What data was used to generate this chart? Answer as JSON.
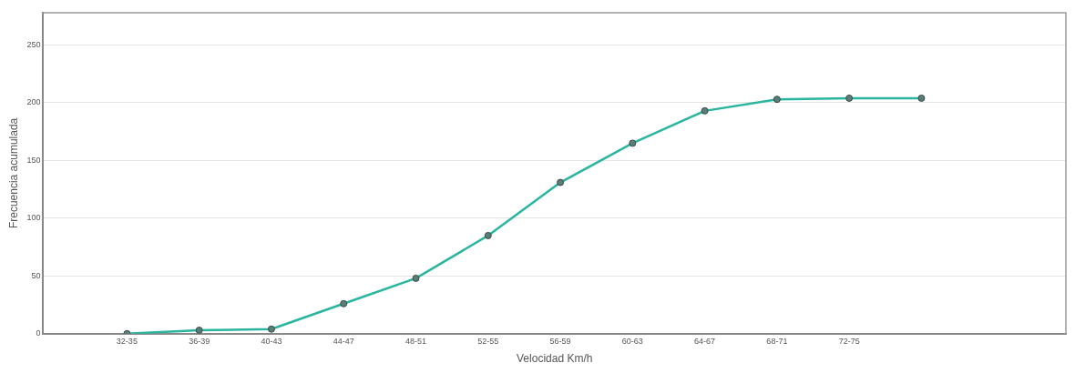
{
  "chart_data": {
    "type": "line",
    "xlabel": "Velocidad Km/h",
    "ylabel": "Frecuencia acumulada",
    "categories": [
      "32-35",
      "36-39",
      "40-43",
      "44-47",
      "48-51",
      "52-55",
      "56-59",
      "60-63",
      "64-67",
      "68-71",
      "72-75",
      null
    ],
    "series": [
      {
        "color": "#2ab5a0",
        "values": [
          0,
          3,
          4,
          26,
          48,
          85,
          131,
          165,
          193,
          203,
          204,
          204
        ]
      }
    ],
    "ylim": [
      0,
      278
    ],
    "yticks": [
      0,
      50,
      100,
      150,
      200,
      250
    ],
    "grid": "y",
    "legend": false,
    "marker": "circle"
  }
}
